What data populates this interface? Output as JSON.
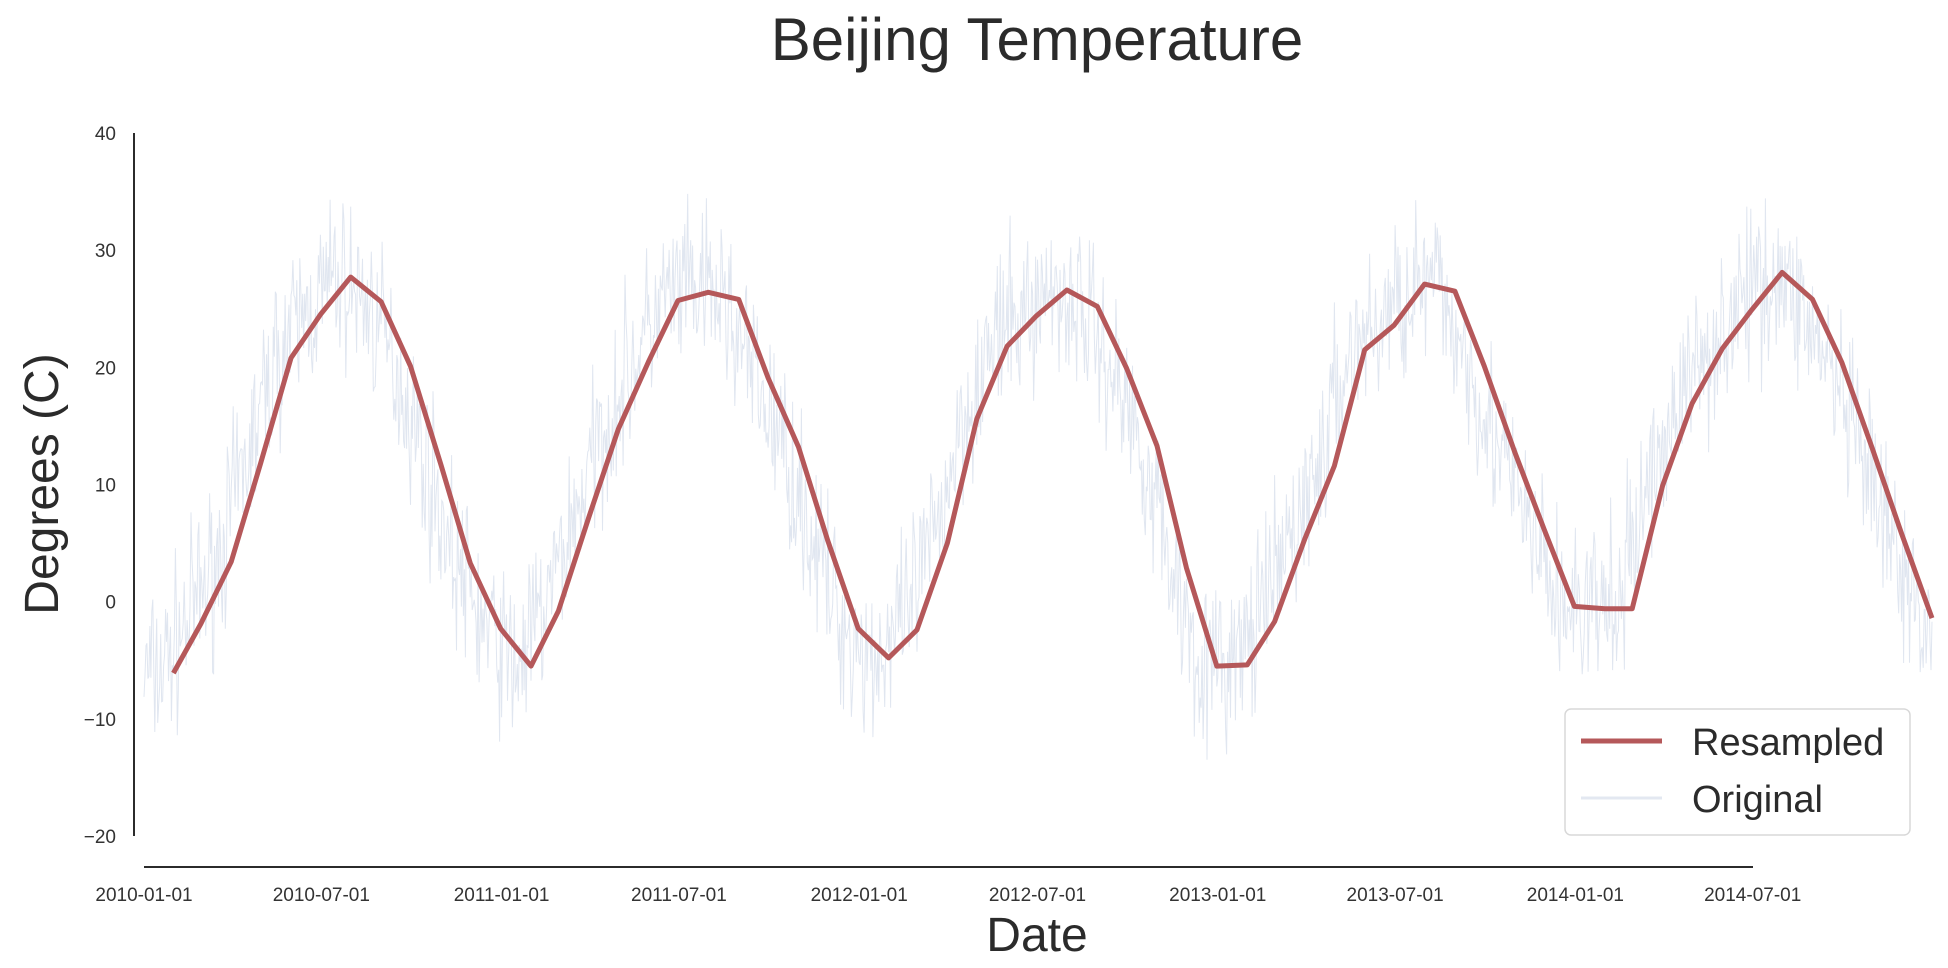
{
  "chart_data": {
    "type": "line",
    "title": "Beijing Temperature",
    "xlabel": "Date",
    "ylabel": "Degrees (C)",
    "x_tick_labels": [
      "2010-01-01",
      "2010-07-01",
      "2011-01-01",
      "2011-07-01",
      "2012-01-01",
      "2012-07-01",
      "2013-01-01",
      "2013-07-01",
      "2014-01-01",
      "2014-07-01"
    ],
    "y_ticks": [
      -20,
      -10,
      0,
      10,
      20,
      30,
      40
    ],
    "y_tick_labels": [
      "−20",
      "−10",
      "0",
      "10",
      "20",
      "30",
      "40"
    ],
    "xlim": [
      "2010-01-01",
      "2014-12-31"
    ],
    "ylim": [
      -20,
      40
    ],
    "grid": false,
    "legend": {
      "position": "lower-right",
      "entries": [
        "Resampled",
        "Original"
      ]
    },
    "series": [
      {
        "name": "Resampled",
        "color": "#b5585a",
        "x": [
          "2010-01-31",
          "2010-02-28",
          "2010-03-31",
          "2010-04-30",
          "2010-05-31",
          "2010-06-30",
          "2010-07-31",
          "2010-08-31",
          "2010-09-30",
          "2010-10-31",
          "2010-11-30",
          "2010-12-31",
          "2011-01-31",
          "2011-02-28",
          "2011-03-31",
          "2011-04-30",
          "2011-05-31",
          "2011-06-30",
          "2011-07-31",
          "2011-08-31",
          "2011-09-30",
          "2011-10-31",
          "2011-11-30",
          "2011-12-31",
          "2012-01-31",
          "2012-02-29",
          "2012-03-31",
          "2012-04-30",
          "2012-05-31",
          "2012-06-30",
          "2012-07-31",
          "2012-08-31",
          "2012-09-30",
          "2012-10-31",
          "2012-11-30",
          "2012-12-31",
          "2013-01-31",
          "2013-02-28",
          "2013-03-31",
          "2013-04-30",
          "2013-05-31",
          "2013-06-30",
          "2013-07-31",
          "2013-08-31",
          "2013-09-30",
          "2013-10-31",
          "2013-11-30",
          "2013-12-31",
          "2014-01-31",
          "2014-02-28",
          "2014-03-31",
          "2014-04-30",
          "2014-05-31",
          "2014-06-30",
          "2014-07-31",
          "2014-08-31",
          "2014-09-30",
          "2014-10-31",
          "2014-11-30",
          "2014-12-31"
        ],
        "values": [
          -6.1,
          -1.9,
          3.4,
          11.8,
          20.8,
          24.5,
          27.7,
          25.6,
          20.1,
          11.7,
          3.3,
          -2.3,
          -5.5,
          -0.8,
          7.2,
          14.7,
          20.5,
          25.7,
          26.4,
          25.8,
          19.1,
          13.2,
          5.2,
          -2.3,
          -4.8,
          -2.4,
          5.0,
          15.6,
          21.8,
          24.4,
          26.6,
          25.2,
          19.9,
          13.3,
          2.9,
          -5.5,
          -5.4,
          -1.7,
          5.4,
          11.6,
          21.5,
          23.6,
          27.1,
          26.5,
          20.1,
          12.8,
          6.2,
          -0.4,
          -0.6,
          -0.6,
          9.9,
          16.9,
          21.6,
          24.9,
          28.1,
          25.8,
          20.4,
          13.1,
          5.8,
          -1.4
        ]
      },
      {
        "name": "Original",
        "color": "#c7d1e3",
        "frequency": "daily",
        "note": "daily values fluctuate roughly ±7 C around the monthly means"
      }
    ]
  }
}
